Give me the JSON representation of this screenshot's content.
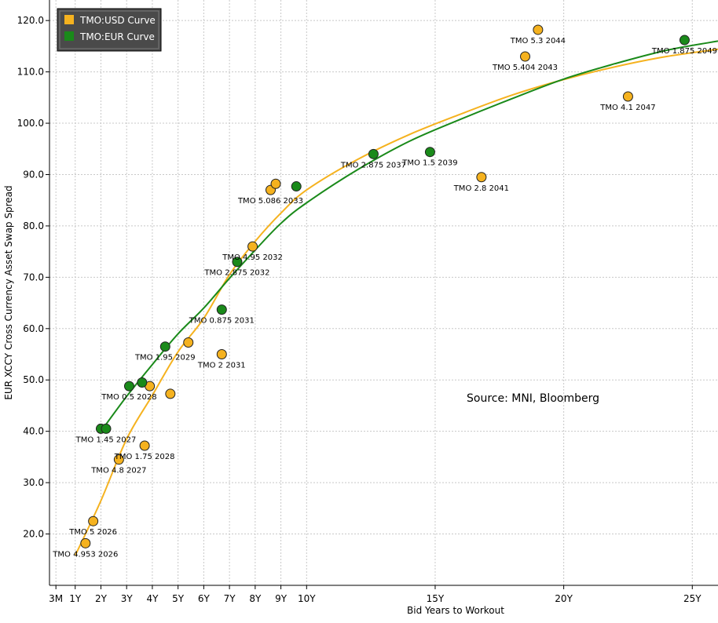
{
  "chart_data": {
    "type": "scatter",
    "ylabel": "EUR XCCY Cross Currency Asset Swap Spread",
    "xlabel": "Bid Years to Workout",
    "source_text": "Source: MNI, Bloomberg",
    "ylim": [
      10,
      124
    ],
    "xlim": [
      0,
      26
    ],
    "y_ticks": [
      {
        "value": 20,
        "label": "20.0"
      },
      {
        "value": 30,
        "label": "30.0"
      },
      {
        "value": 40,
        "label": "40.0"
      },
      {
        "value": 50,
        "label": "50.0"
      },
      {
        "value": 60,
        "label": "60.0"
      },
      {
        "value": 70,
        "label": "70.0"
      },
      {
        "value": 80,
        "label": "80.0"
      },
      {
        "value": 90,
        "label": "90.0"
      },
      {
        "value": 100,
        "label": "100.0"
      },
      {
        "value": 110,
        "label": "110.0"
      },
      {
        "value": 120,
        "label": "120.0"
      }
    ],
    "x_ticks": [
      {
        "value": 0.25,
        "label": "3M"
      },
      {
        "value": 1,
        "label": "1Y"
      },
      {
        "value": 2,
        "label": "2Y"
      },
      {
        "value": 3,
        "label": "3Y"
      },
      {
        "value": 4,
        "label": "4Y"
      },
      {
        "value": 5,
        "label": "5Y"
      },
      {
        "value": 6,
        "label": "6Y"
      },
      {
        "value": 7,
        "label": "7Y"
      },
      {
        "value": 8,
        "label": "8Y"
      },
      {
        "value": 9,
        "label": "9Y"
      },
      {
        "value": 10,
        "label": "10Y"
      },
      {
        "value": 15,
        "label": "15Y"
      },
      {
        "value": 20,
        "label": "20Y"
      },
      {
        "value": 25,
        "label": "25Y"
      }
    ],
    "legend": [
      {
        "name": "TMO:USD Curve",
        "color": "#f5b21f"
      },
      {
        "name": "TMO:EUR Curve",
        "color": "#1a8a1a"
      }
    ],
    "series": [
      {
        "name": "TMO:USD Curve",
        "color": "#f5b21f",
        "points": [
          {
            "x": 1.4,
            "y": 18.2,
            "label": "TMO 4.953 2026"
          },
          {
            "x": 1.7,
            "y": 22.5,
            "label": "TMO 5 2026"
          },
          {
            "x": 2.7,
            "y": 34.5,
            "label": "TMO 4.8 2027"
          },
          {
            "x": 3.7,
            "y": 37.2,
            "label": "TMO 1.75 2028"
          },
          {
            "x": 3.9,
            "y": 48.8,
            "label": ""
          },
          {
            "x": 4.7,
            "y": 47.3,
            "label": ""
          },
          {
            "x": 5.4,
            "y": 57.3,
            "label": ""
          },
          {
            "x": 6.7,
            "y": 55.0,
            "label": "TMO 2 2031"
          },
          {
            "x": 7.9,
            "y": 76.0,
            "label": "TMO 4.95 2032"
          },
          {
            "x": 8.6,
            "y": 87.0,
            "label": "TMO 5.086 2033"
          },
          {
            "x": 8.8,
            "y": 88.2,
            "label": ""
          },
          {
            "x": 16.8,
            "y": 89.5,
            "label": "TMO 2.8 2041"
          },
          {
            "x": 18.5,
            "y": 113.0,
            "label": "TMO 5.404 2043"
          },
          {
            "x": 19.0,
            "y": 118.2,
            "label": "TMO 5.3 2044"
          },
          {
            "x": 22.5,
            "y": 105.2,
            "label": "TMO 4.1 2047"
          }
        ],
        "curve": [
          [
            1,
            15.8
          ],
          [
            2,
            26.5
          ],
          [
            3,
            38.5
          ],
          [
            4,
            47.0
          ],
          [
            5,
            55.5
          ],
          [
            6,
            62.0
          ],
          [
            7,
            70.5
          ],
          [
            8,
            77.0
          ],
          [
            9,
            82.5
          ],
          [
            10,
            87.0
          ],
          [
            12,
            93.0
          ],
          [
            14,
            97.8
          ],
          [
            16,
            101.8
          ],
          [
            18,
            105.5
          ],
          [
            20,
            108.5
          ],
          [
            22,
            111.0
          ],
          [
            24,
            113.0
          ],
          [
            26,
            114.4
          ]
        ]
      },
      {
        "name": "TMO:EUR Curve",
        "color": "#1a8a1a",
        "points": [
          {
            "x": 2.0,
            "y": 40.5,
            "label": ""
          },
          {
            "x": 2.2,
            "y": 40.5,
            "label": "TMO 1.45 2027"
          },
          {
            "x": 3.1,
            "y": 48.8,
            "label": "TMO 0.5 2028"
          },
          {
            "x": 3.6,
            "y": 49.5,
            "label": ""
          },
          {
            "x": 4.5,
            "y": 56.5,
            "label": "TMO 1.95 2029"
          },
          {
            "x": 6.7,
            "y": 63.7,
            "label": "TMO 0.875 2031"
          },
          {
            "x": 7.3,
            "y": 73.0,
            "label": "TMO 2.875 2032"
          },
          {
            "x": 9.6,
            "y": 87.7,
            "label": ""
          },
          {
            "x": 12.6,
            "y": 94.0,
            "label": "TMO 2.875 2037"
          },
          {
            "x": 14.8,
            "y": 94.4,
            "label": "TMO 1.5 2039"
          },
          {
            "x": 24.7,
            "y": 116.2,
            "label": "TMO 1.875 2049"
          }
        ],
        "curve": [
          [
            2,
            40.0
          ],
          [
            3,
            46.8
          ],
          [
            4,
            53.0
          ],
          [
            5,
            59.0
          ],
          [
            6,
            64.0
          ],
          [
            7,
            69.8
          ],
          [
            8,
            75.3
          ],
          [
            9,
            80.5
          ],
          [
            10,
            84.5
          ],
          [
            12,
            91.0
          ],
          [
            14,
            96.5
          ],
          [
            16,
            100.8
          ],
          [
            18,
            104.8
          ],
          [
            20,
            108.6
          ],
          [
            22,
            111.6
          ],
          [
            24,
            114.2
          ],
          [
            26,
            116.0
          ]
        ]
      }
    ]
  }
}
